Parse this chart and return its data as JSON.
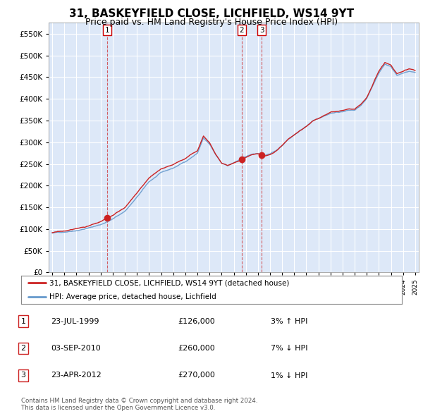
{
  "title": "31, BASKEYFIELD CLOSE, LICHFIELD, WS14 9YT",
  "subtitle": "Price paid vs. HM Land Registry's House Price Index (HPI)",
  "hpi_label": "HPI: Average price, detached house, Lichfield",
  "property_label": "31, BASKEYFIELD CLOSE, LICHFIELD, WS14 9YT (detached house)",
  "ylabel_ticks": [
    0,
    50000,
    100000,
    150000,
    200000,
    250000,
    300000,
    350000,
    400000,
    450000,
    500000,
    550000
  ],
  "ylim": [
    0,
    575000
  ],
  "xlim_start": 1994.7,
  "xlim_end": 2025.3,
  "sale_dates": [
    1999.56,
    2010.67,
    2012.31
  ],
  "sale_prices": [
    126000,
    260000,
    270000
  ],
  "sale_labels": [
    "1",
    "2",
    "3"
  ],
  "sale_info": [
    {
      "label": "1",
      "date": "23-JUL-1999",
      "price": "£126,000",
      "hpi_rel": "3% ↑ HPI"
    },
    {
      "label": "2",
      "date": "03-SEP-2010",
      "price": "£260,000",
      "hpi_rel": "7% ↓ HPI"
    },
    {
      "label": "3",
      "date": "23-APR-2012",
      "price": "£270,000",
      "hpi_rel": "1% ↓ HPI"
    }
  ],
  "background_color": "#ffffff",
  "plot_bg_color": "#dde8f8",
  "grid_color": "#ffffff",
  "hpi_line_color": "#6699cc",
  "sale_line_color": "#cc2222",
  "sale_marker_color": "#cc2222",
  "title_fontsize": 11,
  "subtitle_fontsize": 9,
  "footnote": "Contains HM Land Registry data © Crown copyright and database right 2024.\nThis data is licensed under the Open Government Licence v3.0.",
  "hpi_control_points": [
    [
      1995.0,
      90000
    ],
    [
      1996.0,
      93000
    ],
    [
      1997.0,
      98000
    ],
    [
      1998.0,
      104000
    ],
    [
      1999.0,
      112000
    ],
    [
      2000.0,
      125000
    ],
    [
      2001.0,
      143000
    ],
    [
      2002.0,
      175000
    ],
    [
      2003.0,
      210000
    ],
    [
      2004.0,
      230000
    ],
    [
      2005.0,
      240000
    ],
    [
      2006.0,
      255000
    ],
    [
      2007.0,
      275000
    ],
    [
      2007.5,
      310000
    ],
    [
      2008.0,
      295000
    ],
    [
      2008.5,
      270000
    ],
    [
      2009.0,
      250000
    ],
    [
      2009.5,
      245000
    ],
    [
      2010.0,
      252000
    ],
    [
      2010.5,
      258000
    ],
    [
      2011.0,
      265000
    ],
    [
      2011.5,
      270000
    ],
    [
      2012.0,
      272000
    ],
    [
      2012.5,
      265000
    ],
    [
      2013.0,
      270000
    ],
    [
      2013.5,
      278000
    ],
    [
      2014.0,
      290000
    ],
    [
      2014.5,
      305000
    ],
    [
      2015.0,
      315000
    ],
    [
      2015.5,
      325000
    ],
    [
      2016.0,
      335000
    ],
    [
      2016.5,
      348000
    ],
    [
      2017.0,
      355000
    ],
    [
      2017.5,
      362000
    ],
    [
      2018.0,
      368000
    ],
    [
      2018.5,
      370000
    ],
    [
      2019.0,
      372000
    ],
    [
      2019.5,
      375000
    ],
    [
      2020.0,
      375000
    ],
    [
      2020.5,
      385000
    ],
    [
      2021.0,
      400000
    ],
    [
      2021.5,
      430000
    ],
    [
      2022.0,
      460000
    ],
    [
      2022.5,
      480000
    ],
    [
      2023.0,
      475000
    ],
    [
      2023.5,
      455000
    ],
    [
      2024.0,
      460000
    ],
    [
      2024.5,
      465000
    ],
    [
      2025.0,
      462000
    ]
  ]
}
